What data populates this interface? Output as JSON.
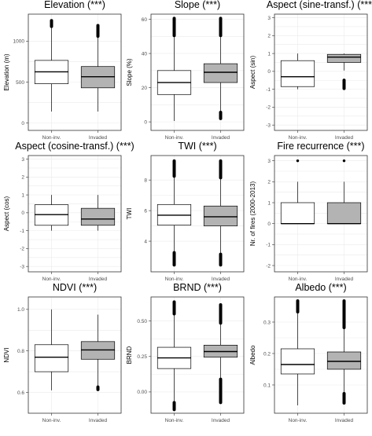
{
  "chart_data": [
    {
      "type": "box",
      "title": "Elevation (***)",
      "ylabel": "Elevation (m)",
      "ylim": [
        -90,
        1330
      ],
      "yticks": [
        0,
        500,
        1000
      ],
      "categories": [
        "Non-inv.",
        "Invaded"
      ],
      "boxes": [
        {
          "fill": "#ffffff",
          "min": 140,
          "q1": 480,
          "median": 625,
          "q3": 765,
          "max": 1170,
          "outliers": [
            {
              "from": 1170,
              "to": 1260
            }
          ],
          "whisker_top_outliers": true
        },
        {
          "fill": "#b3b3b3",
          "min": 140,
          "q1": 430,
          "median": 565,
          "q3": 690,
          "max": 1050,
          "outliers": [
            {
              "from": 1050,
              "to": 1200
            }
          ]
        }
      ]
    },
    {
      "type": "box",
      "title": "Slope (***)",
      "ylabel": "Slope (%)",
      "ylim": [
        -5,
        63
      ],
      "yticks": [
        0,
        20,
        40,
        60
      ],
      "categories": [
        "Non-inv.",
        "Invaded"
      ],
      "boxes": [
        {
          "fill": "#ffffff",
          "min": 0.5,
          "q1": 16,
          "median": 23,
          "q3": 30,
          "max": 50,
          "outliers": [
            {
              "from": 50,
              "to": 61
            }
          ]
        },
        {
          "fill": "#b3b3b3",
          "min": 6,
          "q1": 23,
          "median": 29,
          "q3": 34,
          "max": 50,
          "outliers": [
            {
              "from": 50,
              "to": 61
            },
            {
              "from": 1.5,
              "to": 6
            }
          ]
        }
      ]
    },
    {
      "type": "box",
      "title": "Aspect (sine-transf.) (***)",
      "ylabel": "Aspect (sin)",
      "ylim": [
        -3.3,
        3.2
      ],
      "yticks": [
        -3,
        -2,
        -1,
        0,
        1,
        2,
        3
      ],
      "categories": [
        "Non-inv.",
        "Invaded"
      ],
      "boxes": [
        {
          "fill": "#ffffff",
          "min": -1,
          "q1": -0.85,
          "median": -0.3,
          "q3": 0.6,
          "max": 1,
          "outliers": []
        },
        {
          "fill": "#b3b3b3",
          "min": 0.05,
          "q1": 0.5,
          "median": 0.8,
          "q3": 0.95,
          "max": 1,
          "outliers": [
            {
              "from": -1,
              "to": -0.45
            }
          ]
        }
      ]
    },
    {
      "type": "box",
      "title": "Aspect (cosine-transf.) (***)",
      "ylabel": "Aspect (cos)",
      "ylim": [
        -3.3,
        3.2
      ],
      "yticks": [
        -3,
        -2,
        -1,
        0,
        1,
        2,
        3
      ],
      "categories": [
        "Non-inv.",
        "Invaded"
      ],
      "boxes": [
        {
          "fill": "#ffffff",
          "min": -1,
          "q1": -0.7,
          "median": -0.1,
          "q3": 0.45,
          "max": 1,
          "outliers": []
        },
        {
          "fill": "#b3b3b3",
          "min": -1,
          "q1": -0.7,
          "median": -0.35,
          "q3": 0.25,
          "max": 1,
          "outliers": []
        }
      ]
    },
    {
      "type": "box",
      "title": "TWI (***)",
      "ylabel": "TWI",
      "ylim": [
        2.0,
        9.6
      ],
      "yticks": [
        4,
        6,
        8
      ],
      "categories": [
        "Non-inv.",
        "Invaded"
      ],
      "boxes": [
        {
          "fill": "#ffffff",
          "min": 3.3,
          "q1": 5.05,
          "median": 5.7,
          "q3": 6.4,
          "max": 8.2,
          "outliers": [
            {
              "from": 8.2,
              "to": 9.3
            },
            {
              "from": 2.4,
              "to": 3.3
            }
          ]
        },
        {
          "fill": "#b3b3b3",
          "min": 3.2,
          "q1": 5.0,
          "median": 5.6,
          "q3": 6.3,
          "max": 8.1,
          "outliers": [
            {
              "from": 8.1,
              "to": 9.3
            },
            {
              "from": 2.4,
              "to": 3.2
            }
          ]
        }
      ]
    },
    {
      "type": "box",
      "title": "Fire recurrence (***)",
      "ylabel": "Nr. of fires (2000-2013)",
      "ylim": [
        -2.3,
        3.25
      ],
      "yticks": [
        -2,
        -1,
        0,
        1,
        2,
        3
      ],
      "categories": [
        "Non-inv.",
        "Invaded"
      ],
      "boxes": [
        {
          "fill": "#ffffff",
          "min": 0,
          "q1": 0,
          "median": 0,
          "q3": 1,
          "max": 2,
          "outliers": [
            {
              "value": 3
            }
          ]
        },
        {
          "fill": "#b3b3b3",
          "min": 0,
          "q1": 0,
          "median": 0,
          "q3": 1,
          "max": 2,
          "outliers": [
            {
              "value": 3
            }
          ]
        }
      ]
    },
    {
      "type": "box",
      "title": "NDVI (***)",
      "ylabel": "NDVI",
      "ylim": [
        0.5,
        1.06
      ],
      "yticks": [
        0.6,
        0.8,
        1.0
      ],
      "categories": [
        "Non-inv.",
        "Invaded"
      ],
      "boxes": [
        {
          "fill": "#ffffff",
          "min": 0.61,
          "q1": 0.7,
          "median": 0.77,
          "q3": 0.83,
          "max": 1.0,
          "outliers": []
        },
        {
          "fill": "#b3b3b3",
          "min": 0.63,
          "q1": 0.76,
          "median": 0.805,
          "q3": 0.845,
          "max": 0.975,
          "outliers": [
            {
              "from": 0.61,
              "to": 0.63
            }
          ]
        }
      ]
    },
    {
      "type": "box",
      "title": "BRND (***)",
      "ylabel": "BRND",
      "ylim": [
        -0.15,
        0.67
      ],
      "yticks": [
        0.0,
        0.25,
        0.5
      ],
      "categories": [
        "Non-inv.",
        "Invaded"
      ],
      "boxes": [
        {
          "fill": "#ffffff",
          "min": -0.07,
          "q1": 0.165,
          "median": 0.24,
          "q3": 0.315,
          "max": 0.545,
          "outliers": [
            {
              "from": 0.545,
              "to": 0.64
            },
            {
              "from": -0.13,
              "to": -0.07
            }
          ]
        },
        {
          "fill": "#b3b3b3",
          "min": 0.095,
          "q1": 0.245,
          "median": 0.285,
          "q3": 0.33,
          "max": 0.48,
          "outliers": [
            {
              "from": 0.48,
              "to": 0.62
            },
            {
              "from": -0.08,
              "to": 0.095
            }
          ]
        }
      ]
    },
    {
      "type": "box",
      "title": "Albedo (***)",
      "ylabel": "Albedo",
      "ylim": [
        0.01,
        0.38
      ],
      "yticks": [
        0.1,
        0.2,
        0.3
      ],
      "categories": [
        "Non-inv.",
        "Invaded"
      ],
      "boxes": [
        {
          "fill": "#ffffff",
          "min": 0.035,
          "q1": 0.135,
          "median": 0.165,
          "q3": 0.215,
          "max": 0.33,
          "outliers": [
            {
              "from": 0.33,
              "to": 0.37
            }
          ]
        },
        {
          "fill": "#b3b3b3",
          "min": 0.075,
          "q1": 0.15,
          "median": 0.175,
          "q3": 0.205,
          "max": 0.28,
          "outliers": [
            {
              "from": 0.28,
              "to": 0.37
            },
            {
              "from": 0.04,
              "to": 0.075
            }
          ]
        }
      ]
    }
  ]
}
